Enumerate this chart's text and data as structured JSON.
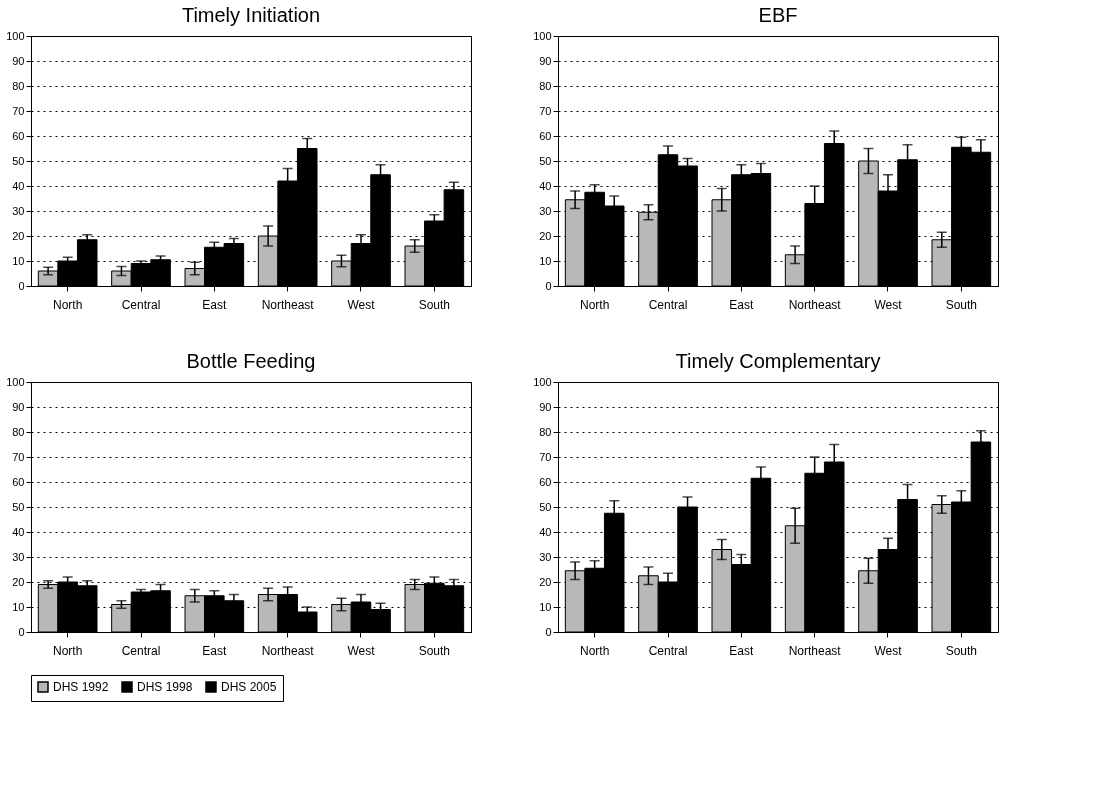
{
  "chart_data": [
    {
      "type": "bar",
      "title": "Timely Initiation",
      "categories": [
        "North",
        "Central",
        "East",
        "Northeast",
        "West",
        "South"
      ],
      "ylim": [
        0,
        100
      ],
      "yticks": [
        0,
        10,
        20,
        30,
        40,
        50,
        60,
        70,
        80,
        90,
        100
      ],
      "grid": "y",
      "legend": "bottom",
      "series": [
        {
          "name": "DHS 1992",
          "color": "#b8b8b8",
          "values": [
            6,
            6,
            7,
            20,
            10,
            16
          ],
          "errors": [
            1.5,
            1.8,
            2.5,
            4,
            2.3,
            2.5
          ]
        },
        {
          "name": "DHS 1998",
          "color": "#000000",
          "values": [
            10,
            9,
            15.5,
            42,
            17,
            26
          ],
          "errors": [
            1.5,
            1,
            2,
            5,
            3.5,
            2.5
          ]
        },
        {
          "name": "DHS 2005",
          "color": "#000000",
          "values": [
            18.5,
            10.5,
            17,
            55,
            44.5,
            38.5
          ],
          "errors": [
            2,
            1.5,
            2,
            4,
            4,
            3
          ]
        }
      ]
    },
    {
      "type": "bar",
      "title": "EBF",
      "categories": [
        "North",
        "Central",
        "East",
        "Northeast",
        "West",
        "South"
      ],
      "ylim": [
        0,
        100
      ],
      "yticks": [
        0,
        10,
        20,
        30,
        40,
        50,
        60,
        70,
        80,
        90,
        100
      ],
      "grid": "y",
      "legend": "bottom",
      "series": [
        {
          "name": "DHS 1992",
          "color": "#b8b8b8",
          "values": [
            34.5,
            29.5,
            34.5,
            12.5,
            50,
            18.5
          ],
          "errors": [
            3.5,
            3,
            4.5,
            3.5,
            5,
            3
          ]
        },
        {
          "name": "DHS 1998",
          "color": "#000000",
          "values": [
            37.5,
            52.5,
            44.5,
            33,
            38,
            55.5
          ],
          "errors": [
            3,
            3.5,
            4,
            7,
            6.5,
            4
          ]
        },
        {
          "name": "DHS 2005",
          "color": "#000000",
          "values": [
            32,
            48,
            45,
            57,
            50.5,
            53.5
          ],
          "errors": [
            4,
            3,
            4,
            5,
            6,
            5
          ]
        }
      ]
    },
    {
      "type": "bar",
      "title": "Bottle Feeding",
      "categories": [
        "North",
        "Central",
        "East",
        "Northeast",
        "West",
        "South"
      ],
      "ylim": [
        0,
        100
      ],
      "yticks": [
        0,
        10,
        20,
        30,
        40,
        50,
        60,
        70,
        80,
        90,
        100
      ],
      "grid": "y",
      "legend": "bottom",
      "series": [
        {
          "name": "DHS 1992",
          "color": "#b8b8b8",
          "values": [
            19,
            11,
            14.5,
            15,
            11,
            19
          ],
          "errors": [
            1.5,
            1.5,
            2.5,
            2.5,
            2.5,
            2
          ]
        },
        {
          "name": "DHS 1998",
          "color": "#000000",
          "values": [
            20,
            16,
            14.5,
            15,
            12,
            19.5
          ],
          "errors": [
            2,
            1,
            2,
            3,
            3,
            2.5
          ]
        },
        {
          "name": "DHS 2005",
          "color": "#000000",
          "values": [
            18.5,
            16.5,
            12.5,
            8,
            9,
            18.5
          ],
          "errors": [
            2,
            2.5,
            2.5,
            2,
            2.5,
            2.5
          ]
        }
      ]
    },
    {
      "type": "bar",
      "title": "Timely Complementary",
      "categories": [
        "North",
        "Central",
        "East",
        "Northeast",
        "West",
        "South"
      ],
      "ylim": [
        0,
        100
      ],
      "yticks": [
        0,
        10,
        20,
        30,
        40,
        50,
        60,
        70,
        80,
        90,
        100
      ],
      "grid": "y",
      "legend": "bottom",
      "series": [
        {
          "name": "DHS 1992",
          "color": "#b8b8b8",
          "values": [
            24.5,
            22.5,
            33,
            42.5,
            24.5,
            51
          ],
          "errors": [
            3.5,
            3.5,
            4,
            7,
            5,
            3.5
          ]
        },
        {
          "name": "DHS 1998",
          "color": "#000000",
          "values": [
            25.5,
            20,
            27,
            63.5,
            33,
            52
          ],
          "errors": [
            3,
            3.5,
            4,
            6.5,
            4.5,
            4.5
          ]
        },
        {
          "name": "DHS 2005",
          "color": "#000000",
          "values": [
            47.5,
            50,
            61.5,
            68,
            53,
            76
          ],
          "errors": [
            5,
            4,
            4.5,
            7,
            6,
            4.5
          ]
        }
      ]
    }
  ]
}
